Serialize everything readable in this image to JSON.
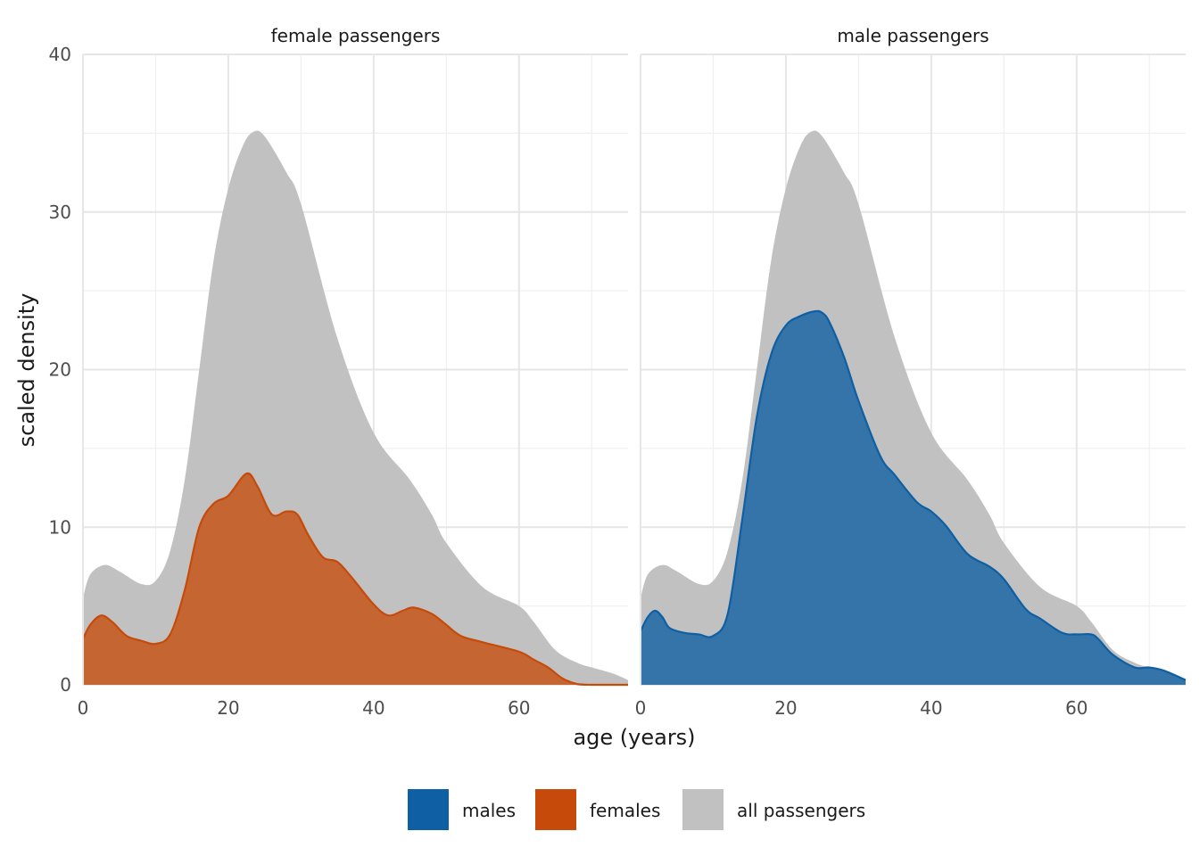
{
  "chart_data": {
    "type": "area",
    "xlabel": "age (years)",
    "ylabel": "scaled density",
    "xlim": [
      0,
      75
    ],
    "ylim": [
      0,
      40
    ],
    "x_ticks": [
      0,
      20,
      40,
      60
    ],
    "y_ticks": [
      0,
      10,
      20,
      30,
      40
    ],
    "grid": true,
    "legend_position": "bottom",
    "legend": [
      {
        "label": "males",
        "color": "#0e5fa3"
      },
      {
        "label": "females",
        "color": "#c64b0a"
      },
      {
        "label": "all passengers",
        "color": "#c1c1c1"
      }
    ],
    "all_passengers": {
      "name": "all passengers",
      "x": [
        0,
        1,
        3,
        5,
        8,
        10,
        12,
        14,
        16,
        18,
        20,
        22,
        23.5,
        25,
        28,
        30,
        35,
        40,
        45,
        48,
        50,
        55,
        60,
        62,
        65,
        68,
        70,
        73,
        75
      ],
      "y": [
        5.5,
        7.0,
        7.6,
        7.2,
        6.4,
        6.6,
        8.5,
        13.0,
        20.0,
        27.0,
        31.5,
        34.2,
        35.1,
        34.8,
        32.5,
        30.5,
        22.0,
        16.0,
        13.0,
        10.8,
        9.0,
        6.2,
        5.0,
        4.0,
        2.2,
        1.4,
        1.1,
        0.7,
        0.3
      ]
    },
    "facets": [
      {
        "title": "female passengers",
        "series": {
          "name": "females",
          "color": "#c64b0a",
          "x": [
            0,
            1,
            2.5,
            4,
            6,
            8,
            10,
            12,
            14,
            16,
            18,
            20,
            22.5,
            24,
            26,
            28,
            29.5,
            31,
            33,
            35,
            37,
            40,
            42,
            44,
            45.5,
            48,
            50,
            52,
            55,
            60,
            62,
            64,
            66,
            68,
            70,
            75
          ],
          "y": [
            2.9,
            3.8,
            4.4,
            4.0,
            3.1,
            2.8,
            2.6,
            3.2,
            6.0,
            10.0,
            11.5,
            12.0,
            13.4,
            12.6,
            10.8,
            11.0,
            10.8,
            9.5,
            8.1,
            7.8,
            6.8,
            5.1,
            4.4,
            4.7,
            4.9,
            4.5,
            3.8,
            3.1,
            2.7,
            2.1,
            1.6,
            1.1,
            0.4,
            0.05,
            0.0,
            0.0
          ]
        }
      },
      {
        "title": "male passengers",
        "series": {
          "name": "males",
          "color": "#0e5fa3",
          "x": [
            0,
            1,
            2,
            3,
            4,
            6,
            8,
            10,
            12,
            14,
            16,
            18,
            20,
            22,
            24,
            25,
            26,
            28,
            30,
            33,
            35,
            38,
            40,
            42,
            45,
            48,
            50,
            53,
            55,
            58,
            60,
            62,
            63,
            65,
            68,
            70,
            72,
            75
          ],
          "y": [
            3.4,
            4.3,
            4.7,
            4.3,
            3.6,
            3.3,
            3.2,
            3.1,
            4.5,
            10.5,
            17.0,
            21.0,
            22.8,
            23.4,
            23.7,
            23.6,
            23.0,
            20.8,
            18.0,
            14.5,
            13.3,
            11.6,
            11.0,
            10.1,
            8.3,
            7.5,
            6.7,
            4.8,
            4.2,
            3.3,
            3.2,
            3.2,
            2.9,
            1.9,
            1.1,
            1.1,
            0.9,
            0.3
          ]
        }
      }
    ]
  }
}
